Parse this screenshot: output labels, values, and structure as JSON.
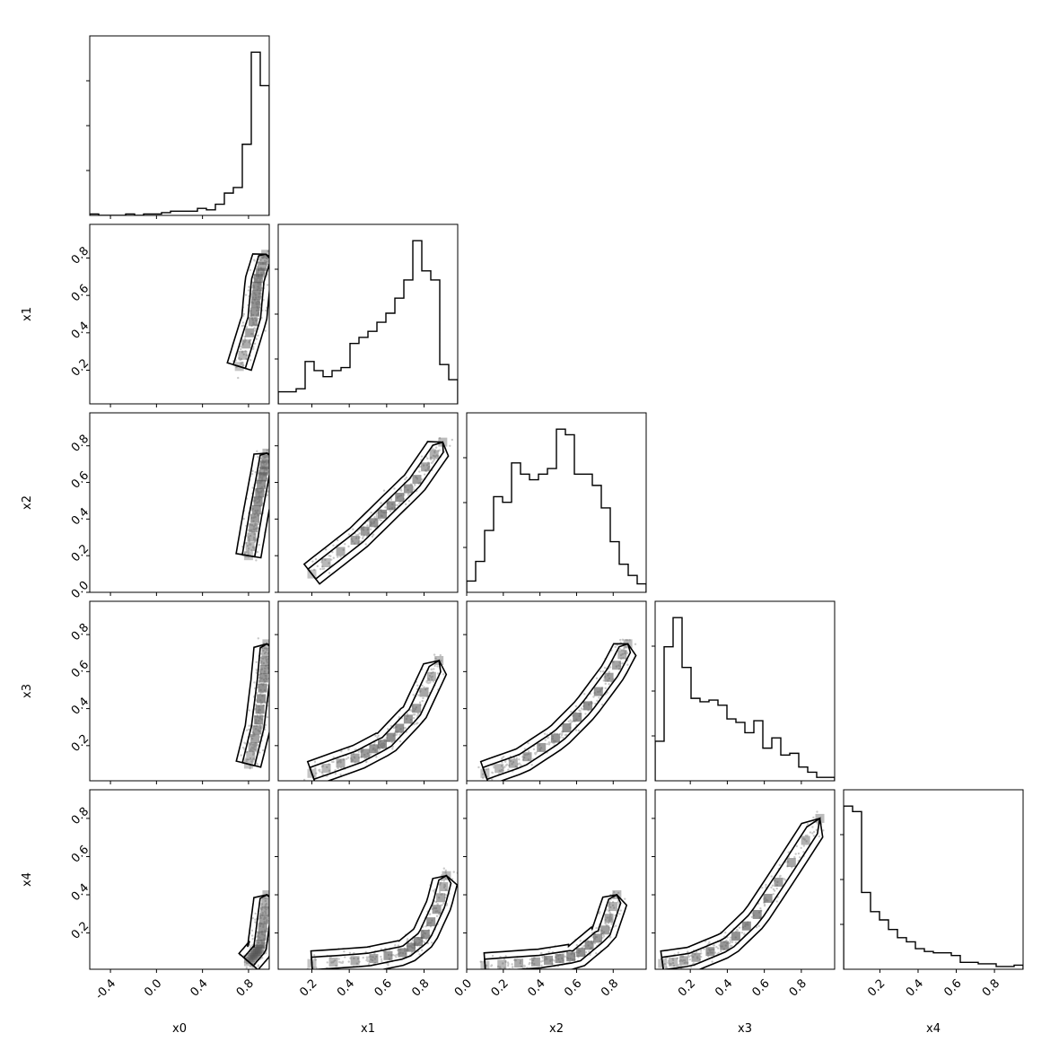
{
  "chart_data": {
    "type": "corner",
    "variables": [
      "x0",
      "x1",
      "x2",
      "x3",
      "x4"
    ],
    "axis_labels": [
      "x0",
      "x1",
      "x2",
      "x3",
      "x4"
    ],
    "ranges": [
      [
        -0.58,
        0.98
      ],
      [
        0.02,
        0.98
      ],
      [
        0.0,
        0.98
      ],
      [
        0.01,
        0.98
      ],
      [
        0.01,
        0.95
      ]
    ],
    "ticks": {
      "x0": [
        "-0.4",
        "0.0",
        "0.4",
        "0.8"
      ],
      "x1": [
        "0.2",
        "0.4",
        "0.6",
        "0.8"
      ],
      "x2": [
        "0.0",
        "0.2",
        "0.4",
        "0.6",
        "0.8"
      ],
      "x3": [
        "0.2",
        "0.4",
        "0.6",
        "0.8"
      ],
      "x4": [
        "0.2",
        "0.4",
        "0.6",
        "0.8"
      ]
    },
    "histograms": [
      {
        "variable": "x0",
        "bins": 20,
        "counts": [
          1,
          0,
          0,
          0,
          1,
          0,
          1,
          1,
          2,
          3,
          3,
          3,
          5,
          4,
          8,
          16,
          20,
          51,
          117,
          93
        ]
      },
      {
        "variable": "x1",
        "bins": 20,
        "counts": [
          4,
          4,
          5,
          14,
          11,
          9,
          11,
          12,
          20,
          22,
          24,
          27,
          30,
          35,
          41,
          54,
          44,
          41,
          13,
          8
        ]
      },
      {
        "variable": "x2",
        "bins": 20,
        "counts": [
          4,
          11,
          22,
          34,
          32,
          46,
          42,
          40,
          42,
          44,
          58,
          56,
          42,
          42,
          38,
          30,
          18,
          10,
          6,
          3
        ]
      },
      {
        "variable": "x3",
        "bins": 20,
        "counts": [
          23,
          78,
          95,
          66,
          48,
          46,
          47,
          44,
          36,
          34,
          28,
          35,
          19,
          25,
          15,
          16,
          8,
          5,
          2,
          2
        ]
      },
      {
        "variable": "x4",
        "bins": 20,
        "counts": [
          119,
          115,
          56,
          42,
          36,
          29,
          23,
          20,
          15,
          13,
          12,
          12,
          10,
          5,
          5,
          4,
          4,
          2,
          2,
          3
        ]
      }
    ],
    "pair_ridges": {
      "x1|x0": [
        [
          0.72,
          0.22
        ],
        [
          0.85,
          0.48
        ],
        [
          0.88,
          0.68
        ],
        [
          0.95,
          0.82
        ]
      ],
      "x2|x0": [
        [
          0.8,
          0.2
        ],
        [
          0.86,
          0.42
        ],
        [
          0.92,
          0.62
        ],
        [
          0.96,
          0.76
        ]
      ],
      "x2|x1": [
        [
          0.2,
          0.1
        ],
        [
          0.45,
          0.3
        ],
        [
          0.6,
          0.45
        ],
        [
          0.75,
          0.6
        ],
        [
          0.9,
          0.82
        ]
      ],
      "x3|x0": [
        [
          0.8,
          0.1
        ],
        [
          0.88,
          0.3
        ],
        [
          0.93,
          0.55
        ],
        [
          0.96,
          0.75
        ]
      ],
      "x3|x1": [
        [
          0.2,
          0.05
        ],
        [
          0.45,
          0.14
        ],
        [
          0.6,
          0.22
        ],
        [
          0.75,
          0.38
        ],
        [
          0.88,
          0.66
        ]
      ],
      "x3|x2": [
        [
          0.1,
          0.05
        ],
        [
          0.3,
          0.12
        ],
        [
          0.5,
          0.25
        ],
        [
          0.65,
          0.4
        ],
        [
          0.8,
          0.6
        ],
        [
          0.88,
          0.75
        ]
      ],
      "x4|x0": [
        [
          0.8,
          0.05
        ],
        [
          0.9,
          0.12
        ],
        [
          0.96,
          0.4
        ]
      ],
      "x4|x1": [
        [
          0.2,
          0.04
        ],
        [
          0.5,
          0.06
        ],
        [
          0.7,
          0.1
        ],
        [
          0.8,
          0.18
        ],
        [
          0.88,
          0.35
        ],
        [
          0.92,
          0.5
        ]
      ],
      "x4|x2": [
        [
          0.1,
          0.03
        ],
        [
          0.4,
          0.05
        ],
        [
          0.6,
          0.08
        ],
        [
          0.75,
          0.2
        ],
        [
          0.82,
          0.4
        ]
      ],
      "x4|x3": [
        [
          0.05,
          0.04
        ],
        [
          0.2,
          0.06
        ],
        [
          0.4,
          0.14
        ],
        [
          0.55,
          0.28
        ],
        [
          0.7,
          0.5
        ],
        [
          0.9,
          0.8
        ]
      ]
    }
  }
}
